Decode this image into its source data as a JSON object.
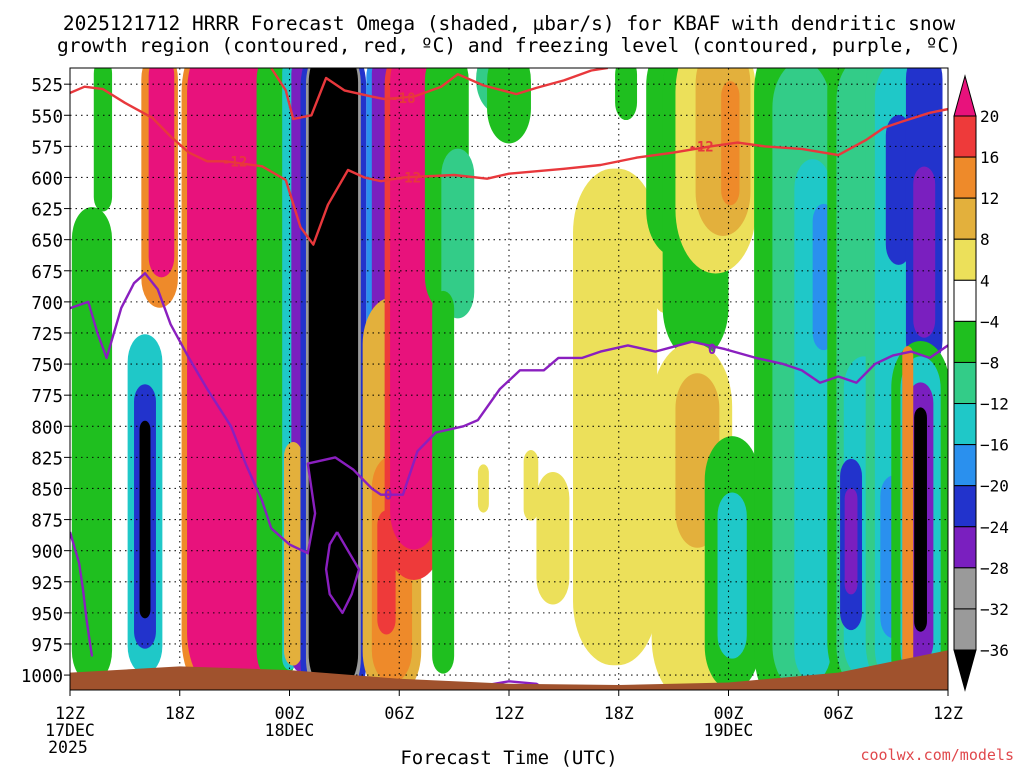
{
  "chart_data": {
    "type": "heatmap",
    "title_line1": "2025121712 HRRR Forecast Omega (shaded, µbar/s) for KBAF with dendritic snow",
    "title_line2": "growth region (contoured, red, ºC) and freezing level (contoured, purple, ºC)",
    "xlabel": "Forecast Time (UTC)",
    "x_ticks": [
      {
        "h": 0,
        "label": "12Z",
        "sub1": "17DEC",
        "sub2": "2025"
      },
      {
        "h": 6,
        "label": "18Z"
      },
      {
        "h": 12,
        "label": "00Z",
        "sub1": "18DEC"
      },
      {
        "h": 18,
        "label": "06Z"
      },
      {
        "h": 24,
        "label": "12Z"
      },
      {
        "h": 30,
        "label": "18Z"
      },
      {
        "h": 36,
        "label": "00Z",
        "sub1": "19DEC"
      },
      {
        "h": 42,
        "label": "06Z"
      },
      {
        "h": 48,
        "label": "12Z"
      }
    ],
    "xlim": [
      0,
      48
    ],
    "y_ticks": [
      "525",
      "550",
      "575",
      "600",
      "625",
      "650",
      "675",
      "700",
      "725",
      "750",
      "775",
      "800",
      "825",
      "850",
      "875",
      "900",
      "925",
      "950",
      "975",
      "1000"
    ],
    "ylim": [
      1012,
      512
    ],
    "colorbar": {
      "labels": [
        "20",
        "16",
        "12",
        "8",
        "4",
        "−4",
        "−8",
        "−12",
        "−16",
        "−20",
        "−24",
        "−28",
        "−32",
        "−36"
      ],
      "levels": [
        20,
        16,
        12,
        8,
        4,
        -4,
        -8,
        -12,
        -16,
        -20,
        -24,
        -28,
        -32,
        -36
      ],
      "colors": [
        "#e8127c",
        "#ee3a3a",
        "#ee8a2a",
        "#e3b03c",
        "#ece05a",
        "#ffffff",
        "#1fbf1f",
        "#33cc88",
        "#1fc8c8",
        "#2a90ee",
        "#2233cc",
        "#7a1fbf",
        "#9a9a9a",
        "#000000"
      ]
    },
    "omega_columns": [
      {
        "h": 0.8,
        "p_top": 512,
        "p_bot": 565,
        "w": 0.5,
        "v": 6
      },
      {
        "h": 1.2,
        "p_top": 640,
        "p_bot": 990,
        "w": 1.1,
        "v": -8
      },
      {
        "h": 1.8,
        "p_top": 512,
        "p_bot": 620,
        "w": 0.5,
        "v": -8
      },
      {
        "h": 4.1,
        "p_top": 680,
        "p_bot": 995,
        "w": 1.4,
        "v": -10
      },
      {
        "h": 4.1,
        "p_top": 740,
        "p_bot": 985,
        "w": 0.95,
        "v": -16
      },
      {
        "h": 4.1,
        "p_top": 775,
        "p_bot": 970,
        "w": 0.6,
        "v": -24
      },
      {
        "h": 4.1,
        "p_top": 800,
        "p_bot": 950,
        "w": 0.3,
        "v": -36
      },
      {
        "h": 4.9,
        "p_top": 512,
        "p_bot": 690,
        "w": 1.0,
        "v": 12
      },
      {
        "h": 5.0,
        "p_top": 512,
        "p_bot": 670,
        "w": 0.7,
        "v": 20
      },
      {
        "h": 8.7,
        "p_top": 512,
        "p_bot": 990,
        "w": 2.6,
        "v": 12
      },
      {
        "h": 8.7,
        "p_top": 512,
        "p_bot": 985,
        "w": 2.3,
        "v": 20
      },
      {
        "h": 11.3,
        "p_top": 512,
        "p_bot": 990,
        "w": 1.1,
        "v": -8
      },
      {
        "h": 12.0,
        "p_top": 512,
        "p_bot": 990,
        "w": 0.4,
        "v": -16
      },
      {
        "h": 12.6,
        "p_top": 512,
        "p_bot": 990,
        "w": 0.5,
        "v": -28
      },
      {
        "h": 12.2,
        "p_top": 820,
        "p_bot": 985,
        "w": 0.5,
        "v": 8
      },
      {
        "h": 14.4,
        "p_top": 512,
        "p_bot": 1005,
        "w": 1.8,
        "v": -24
      },
      {
        "h": 14.4,
        "p_top": 512,
        "p_bot": 1000,
        "w": 1.5,
        "v": -32
      },
      {
        "h": 14.4,
        "p_top": 512,
        "p_bot": 995,
        "w": 1.35,
        "v": -36
      },
      {
        "h": 17.0,
        "p_top": 512,
        "p_bot": 980,
        "w": 0.8,
        "v": -20
      },
      {
        "h": 17.0,
        "p_top": 512,
        "p_bot": 975,
        "w": 0.5,
        "v": -28
      },
      {
        "h": 17.6,
        "p_top": 720,
        "p_bot": 995,
        "w": 1.6,
        "v": 8
      },
      {
        "h": 17.6,
        "p_top": 840,
        "p_bot": 990,
        "w": 1.1,
        "v": 12
      },
      {
        "h": 17.3,
        "p_top": 875,
        "p_bot": 960,
        "w": 0.5,
        "v": 16
      },
      {
        "h": 18.8,
        "p_top": 512,
        "p_bot": 900,
        "w": 1.6,
        "v": 16
      },
      {
        "h": 18.8,
        "p_top": 512,
        "p_bot": 880,
        "w": 1.3,
        "v": 20
      },
      {
        "h": 20.6,
        "p_top": 512,
        "p_bot": 690,
        "w": 1.2,
        "v": -8
      },
      {
        "h": 21.2,
        "p_top": 590,
        "p_bot": 700,
        "w": 0.9,
        "v": -12
      },
      {
        "h": 20.4,
        "p_top": 700,
        "p_bot": 990,
        "w": 0.6,
        "v": -8
      },
      {
        "h": 23.5,
        "p_top": 512,
        "p_bot": 530,
        "w": 1.3,
        "v": -12
      },
      {
        "h": 24.0,
        "p_top": 512,
        "p_bot": 555,
        "w": 1.2,
        "v": -8
      },
      {
        "h": 22.6,
        "p_top": 835,
        "p_bot": 865,
        "w": 0.3,
        "v": 4
      },
      {
        "h": 25.2,
        "p_top": 825,
        "p_bot": 870,
        "w": 0.4,
        "v": 4
      },
      {
        "h": 26.4,
        "p_top": 850,
        "p_bot": 930,
        "w": 0.9,
        "v": 4
      },
      {
        "h": 29.8,
        "p_top": 625,
        "p_bot": 960,
        "w": 2.3,
        "v": 4
      },
      {
        "h": 30.4,
        "p_top": 512,
        "p_bot": 545,
        "w": 0.6,
        "v": -8
      },
      {
        "h": 32.5,
        "p_top": 640,
        "p_bot": 700,
        "w": 0.6,
        "v": 4
      },
      {
        "h": 33.1,
        "p_top": 512,
        "p_bot": 640,
        "w": 1.6,
        "v": -8
      },
      {
        "h": 34.2,
        "p_top": 512,
        "p_bot": 720,
        "w": 1.8,
        "v": -8
      },
      {
        "h": 35.3,
        "p_top": 512,
        "p_bot": 645,
        "w": 2.2,
        "v": 4
      },
      {
        "h": 35.7,
        "p_top": 512,
        "p_bot": 625,
        "w": 1.5,
        "v": 8
      },
      {
        "h": 36.1,
        "p_top": 530,
        "p_bot": 615,
        "w": 0.5,
        "v": 12
      },
      {
        "h": 34.0,
        "p_top": 765,
        "p_bot": 990,
        "w": 2.2,
        "v": 4
      },
      {
        "h": 34.3,
        "p_top": 775,
        "p_bot": 880,
        "w": 1.2,
        "v": 8
      },
      {
        "h": 36.2,
        "p_top": 830,
        "p_bot": 990,
        "w": 1.5,
        "v": -8
      },
      {
        "h": 36.2,
        "p_top": 865,
        "p_bot": 975,
        "w": 0.8,
        "v": -16
      },
      {
        "h": 40.0,
        "p_top": 512,
        "p_bot": 1000,
        "w": 2.6,
        "v": -8
      },
      {
        "h": 40.0,
        "p_top": 530,
        "p_bot": 990,
        "w": 1.6,
        "v": -12
      },
      {
        "h": 40.6,
        "p_top": 600,
        "p_bot": 990,
        "w": 1.0,
        "v": -16
      },
      {
        "h": 41.2,
        "p_top": 630,
        "p_bot": 730,
        "w": 0.6,
        "v": -20
      },
      {
        "h": 43.4,
        "p_top": 512,
        "p_bot": 990,
        "w": 2.0,
        "v": -8
      },
      {
        "h": 43.4,
        "p_top": 525,
        "p_bot": 990,
        "w": 1.5,
        "v": -12
      },
      {
        "h": 43.4,
        "p_top": 760,
        "p_bot": 985,
        "w": 1.1,
        "v": -16
      },
      {
        "h": 42.7,
        "p_top": 835,
        "p_bot": 955,
        "w": 0.6,
        "v": -24
      },
      {
        "h": 42.7,
        "p_top": 855,
        "p_bot": 930,
        "w": 0.35,
        "v": -28
      },
      {
        "h": 45.3,
        "p_top": 512,
        "p_bot": 990,
        "w": 1.8,
        "v": -12
      },
      {
        "h": 45.3,
        "p_top": 525,
        "p_bot": 990,
        "w": 1.3,
        "v": -16
      },
      {
        "h": 45.3,
        "p_top": 560,
        "p_bot": 660,
        "w": 0.7,
        "v": -24
      },
      {
        "h": 45.0,
        "p_top": 850,
        "p_bot": 960,
        "w": 0.7,
        "v": -20
      },
      {
        "h": 46.7,
        "p_top": 512,
        "p_bot": 740,
        "w": 1.0,
        "v": -24
      },
      {
        "h": 46.7,
        "p_top": 600,
        "p_bot": 720,
        "w": 0.6,
        "v": -28
      },
      {
        "h": 46.5,
        "p_top": 755,
        "p_bot": 1000,
        "w": 1.6,
        "v": -8
      },
      {
        "h": 46.5,
        "p_top": 760,
        "p_bot": 990,
        "w": 1.1,
        "v": -16
      },
      {
        "h": 46.5,
        "p_top": 775,
        "p_bot": 980,
        "w": 0.7,
        "v": -28
      },
      {
        "h": 46.5,
        "p_top": 790,
        "p_bot": 960,
        "w": 0.35,
        "v": -36
      },
      {
        "h": 45.8,
        "p_top": 740,
        "p_bot": 990,
        "w": 0.3,
        "v": 12
      }
    ],
    "isotherm_minus12": {
      "label": "-12",
      "points": [
        [
          0,
          532
        ],
        [
          0.8,
          527
        ],
        [
          1.8,
          529
        ],
        [
          3,
          540
        ],
        [
          4.5,
          552
        ],
        [
          5.5,
          567
        ],
        [
          6.5,
          580
        ],
        [
          7.5,
          587
        ],
        [
          8.5,
          587
        ],
        [
          10.5,
          591
        ],
        [
          11.8,
          602
        ],
        [
          12.6,
          640
        ],
        [
          13.3,
          654
        ],
        [
          14.1,
          622
        ],
        [
          15.2,
          594
        ],
        [
          16.1,
          600
        ],
        [
          17.0,
          603
        ],
        [
          18.2,
          600
        ],
        [
          21.0,
          598
        ],
        [
          22.8,
          601
        ],
        [
          24.0,
          597
        ],
        [
          27.0,
          593
        ],
        [
          29.0,
          590
        ],
        [
          31.0,
          584
        ],
        [
          33.0,
          580
        ],
        [
          35.0,
          575
        ],
        [
          36.5,
          572
        ],
        [
          38.0,
          575
        ],
        [
          40.0,
          577
        ],
        [
          42.0,
          582
        ],
        [
          43.5,
          570
        ],
        [
          44.5,
          560
        ],
        [
          45.5,
          555
        ],
        [
          47.0,
          548
        ],
        [
          48,
          545
        ]
      ],
      "label_positions": [
        [
          9.0,
          587
        ],
        [
          18.5,
          600
        ],
        [
          34.5,
          575
        ]
      ]
    },
    "isotherm_minus18": {
      "label": "-18",
      "points": [
        [
          11.0,
          512
        ],
        [
          11.8,
          530
        ],
        [
          12.2,
          553
        ],
        [
          13.2,
          550
        ],
        [
          14.0,
          520
        ],
        [
          15.0,
          530
        ],
        [
          16.5,
          535
        ],
        [
          17.2,
          537
        ],
        [
          18.8,
          535
        ],
        [
          20.3,
          527
        ],
        [
          21.2,
          517
        ],
        [
          22.6,
          526
        ],
        [
          24.4,
          533
        ],
        [
          25.5,
          528
        ],
        [
          27.0,
          522
        ],
        [
          28.5,
          514
        ],
        [
          29.4,
          512
        ]
      ],
      "label_positions": [
        [
          18.2,
          536
        ]
      ]
    },
    "freezing_level": {
      "label": "0",
      "points": [
        [
          0,
          705
        ],
        [
          1.0,
          700
        ],
        [
          1.5,
          725
        ],
        [
          2.0,
          745
        ],
        [
          2.8,
          705
        ],
        [
          3.5,
          685
        ],
        [
          4.1,
          677
        ],
        [
          4.8,
          690
        ],
        [
          5.5,
          718
        ],
        [
          6.5,
          745
        ],
        [
          7.5,
          770
        ],
        [
          8.8,
          800
        ],
        [
          9.6,
          830
        ],
        [
          10.5,
          860
        ],
        [
          11.0,
          882
        ],
        [
          12.0,
          895
        ],
        [
          13.0,
          902
        ],
        [
          13.4,
          870
        ],
        [
          13.0,
          830
        ],
        [
          14.5,
          825
        ],
        [
          15.5,
          835
        ],
        [
          16.5,
          850
        ],
        [
          17.0,
          855
        ],
        [
          18.2,
          855
        ],
        [
          19.0,
          820
        ],
        [
          20.0,
          805
        ],
        [
          21.5,
          800
        ],
        [
          22.3,
          795
        ],
        [
          23.5,
          770
        ],
        [
          24.6,
          755
        ],
        [
          25.9,
          755
        ],
        [
          26.7,
          745
        ],
        [
          28.0,
          745
        ],
        [
          29.0,
          740
        ],
        [
          30.5,
          735
        ],
        [
          32.0,
          740
        ],
        [
          33.0,
          736
        ],
        [
          34.0,
          732
        ],
        [
          35.8,
          738
        ],
        [
          37.5,
          745
        ],
        [
          39.0,
          750
        ],
        [
          40.0,
          755
        ],
        [
          41.0,
          765
        ],
        [
          42.0,
          760
        ],
        [
          43.0,
          765
        ],
        [
          44.0,
          750
        ],
        [
          45.0,
          743
        ],
        [
          46.0,
          740
        ],
        [
          47.0,
          745
        ],
        [
          48,
          735
        ]
      ],
      "label_positions": [
        [
          17.4,
          855
        ],
        [
          35.1,
          738
        ]
      ],
      "low_segments": [
        [
          [
            0,
            885
          ],
          [
            0.5,
            910
          ],
          [
            0.7,
            930
          ],
          [
            0.9,
            955
          ],
          [
            1.1,
            975
          ],
          [
            1.2,
            985
          ]
        ],
        [
          [
            14.6,
            885
          ],
          [
            15.2,
            900
          ],
          [
            15.8,
            915
          ],
          [
            15.4,
            935
          ],
          [
            14.9,
            950
          ],
          [
            14.2,
            935
          ],
          [
            14.0,
            915
          ],
          [
            14.2,
            895
          ],
          [
            14.6,
            885
          ]
        ],
        [
          [
            22.0,
            1010
          ],
          [
            24.0,
            1005
          ],
          [
            25.5,
            1007
          ],
          [
            26.0,
            1012
          ]
        ]
      ]
    },
    "terrain_pressure": [
      [
        0,
        998
      ],
      [
        6,
        993
      ],
      [
        12,
        996
      ],
      [
        18,
        1003
      ],
      [
        24,
        1007
      ],
      [
        30,
        1008
      ],
      [
        36,
        1006
      ],
      [
        42,
        998
      ],
      [
        48,
        980
      ]
    ],
    "footer": "coolwx.com/models"
  }
}
